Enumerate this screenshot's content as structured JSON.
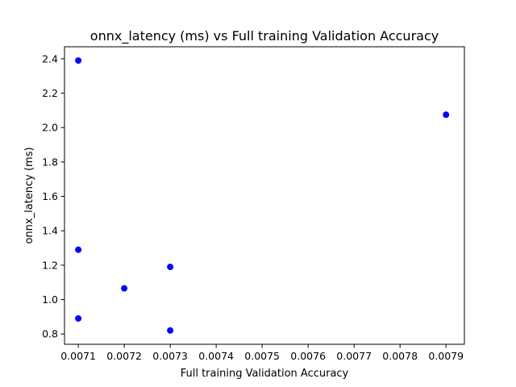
{
  "chart_data": {
    "type": "scatter",
    "title": "onnx_latency (ms) vs Full training Validation Accuracy",
    "xlabel": "Full training Validation Accuracy",
    "ylabel": "onnx_latency (ms)",
    "xlim": [
      0.00707,
      0.00794
    ],
    "ylim": [
      0.74,
      2.47
    ],
    "xticks": [
      0.0071,
      0.0072,
      0.0073,
      0.0074,
      0.0075,
      0.0076,
      0.0077,
      0.0078,
      0.0079
    ],
    "xtick_labels": [
      "0.0071",
      "0.0072",
      "0.0073",
      "0.0074",
      "0.0075",
      "0.0076",
      "0.0077",
      "0.0078",
      "0.0079"
    ],
    "yticks": [
      0.8,
      1.0,
      1.2,
      1.4,
      1.6,
      1.8,
      2.0,
      2.2,
      2.4
    ],
    "ytick_labels": [
      "0.8",
      "1.0",
      "1.2",
      "1.4",
      "1.6",
      "1.8",
      "2.0",
      "2.2",
      "2.4"
    ],
    "grid": false,
    "marker_color": "#0000ff",
    "points": [
      {
        "x": 0.0071,
        "y": 2.39
      },
      {
        "x": 0.0071,
        "y": 1.29
      },
      {
        "x": 0.0071,
        "y": 0.89
      },
      {
        "x": 0.0072,
        "y": 1.065
      },
      {
        "x": 0.0073,
        "y": 1.19
      },
      {
        "x": 0.0073,
        "y": 0.82
      },
      {
        "x": 0.0079,
        "y": 2.075
      }
    ]
  }
}
